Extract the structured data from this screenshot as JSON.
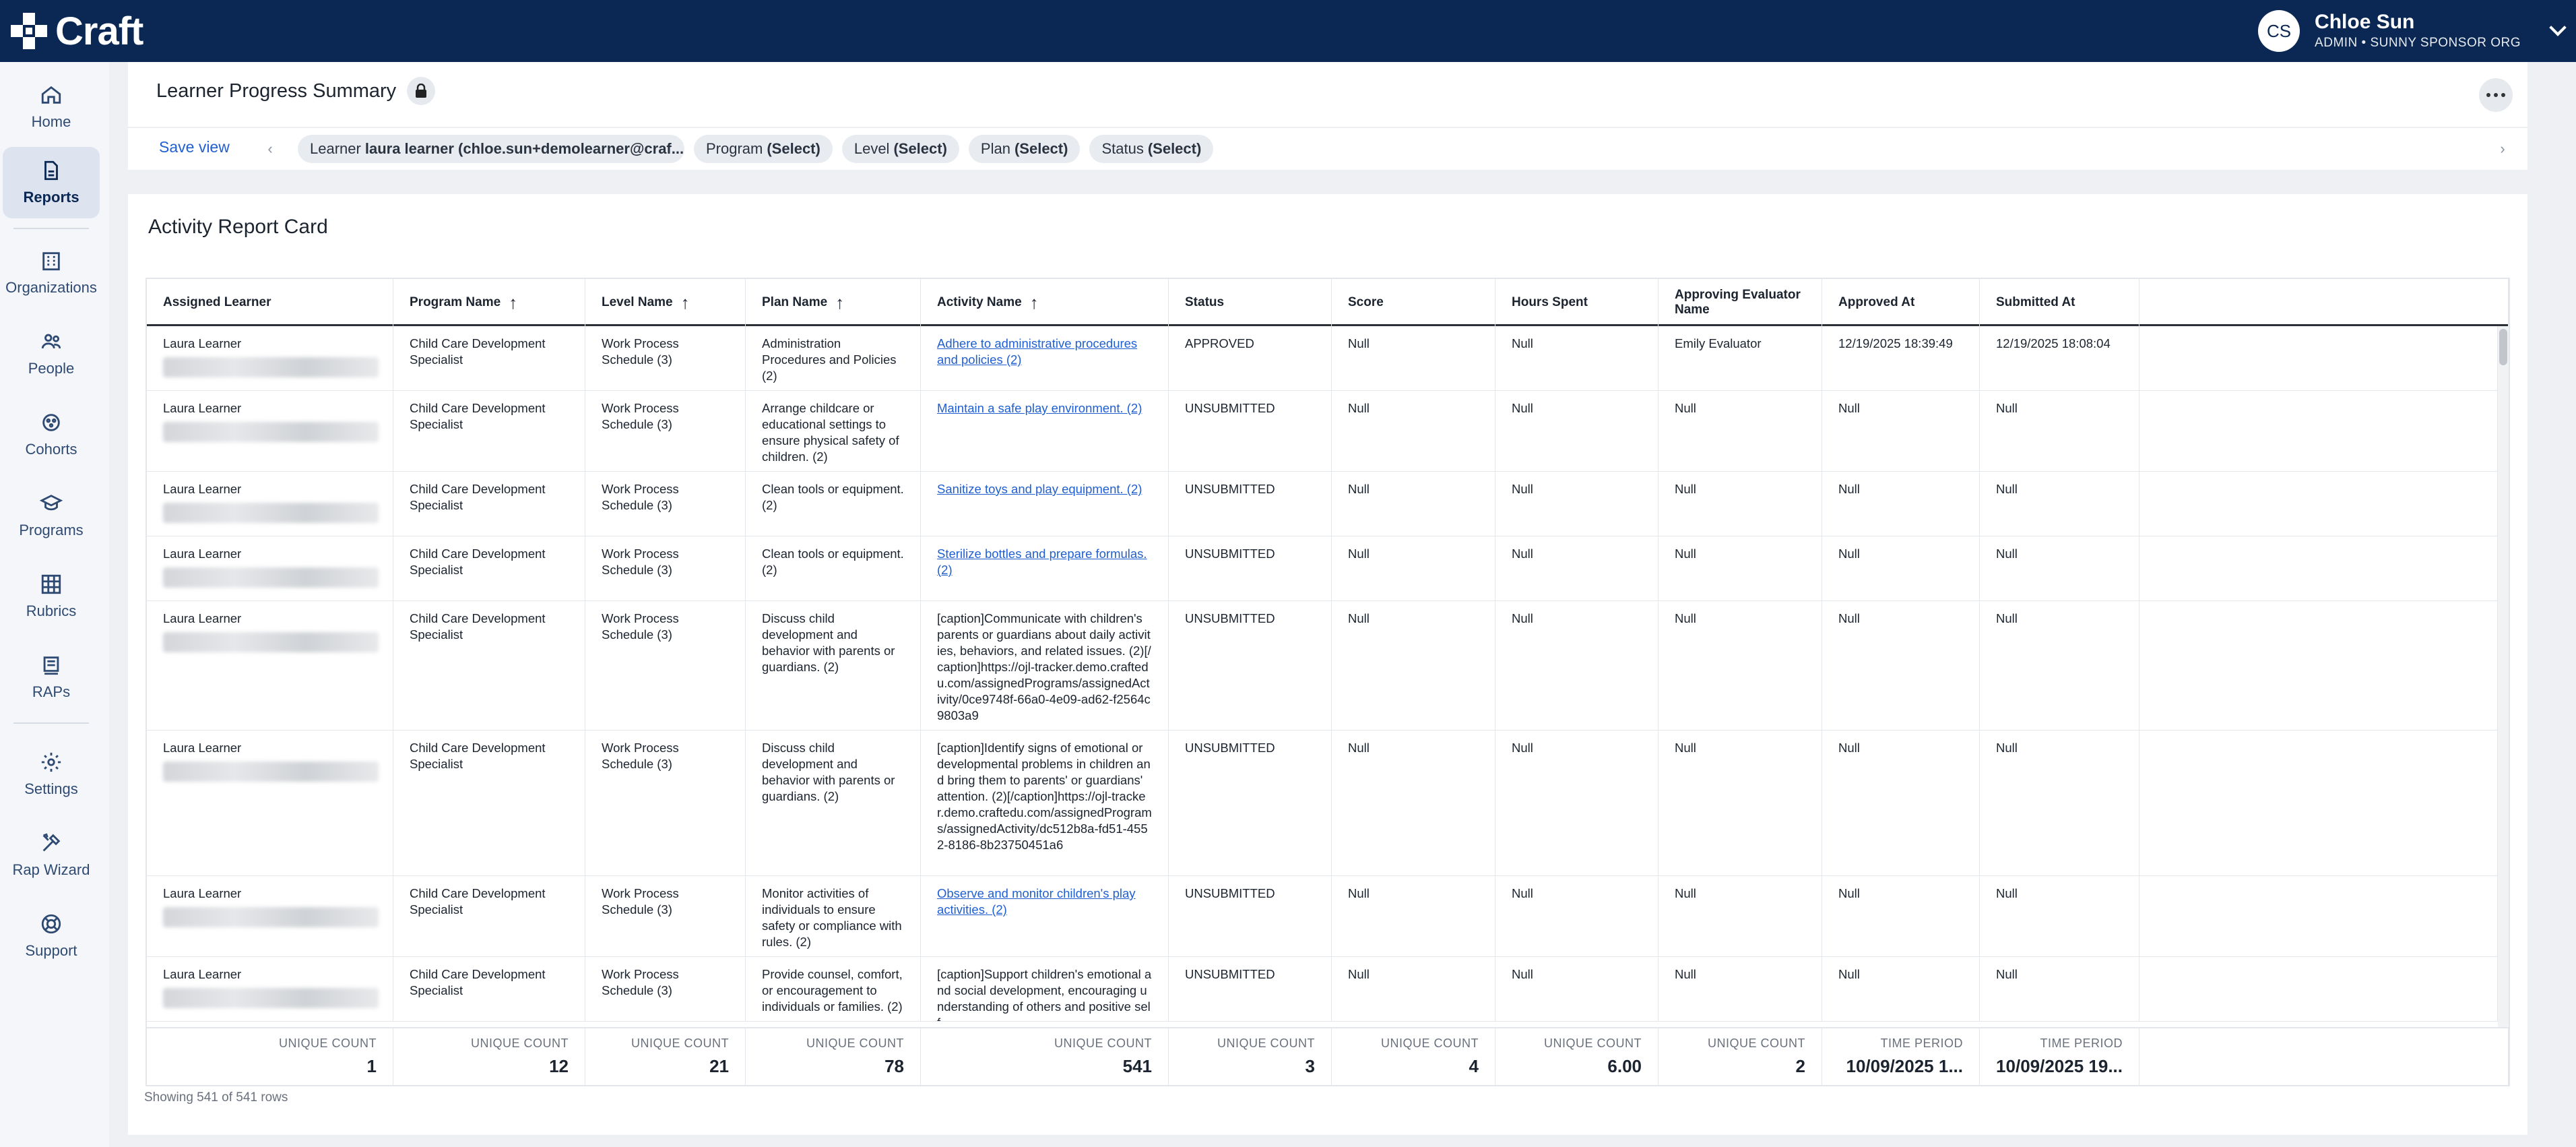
{
  "app": {
    "name": "Craft"
  },
  "user": {
    "initials": "CS",
    "name": "Chloe Sun",
    "role": "ADMIN • SUNNY SPONSOR ORG"
  },
  "sidebar": {
    "items": [
      {
        "label": "Home",
        "icon": "home-icon"
      },
      {
        "label": "Reports",
        "icon": "report-icon",
        "active": true
      },
      {
        "label": "Organizations",
        "icon": "building-icon"
      },
      {
        "label": "People",
        "icon": "people-icon"
      },
      {
        "label": "Cohorts",
        "icon": "cohorts-icon"
      },
      {
        "label": "Programs",
        "icon": "graduation-cap-icon"
      },
      {
        "label": "Rubrics",
        "icon": "grid-icon"
      },
      {
        "label": "RAPs",
        "icon": "document-icon"
      },
      {
        "label": "Settings",
        "icon": "gear-icon"
      },
      {
        "label": "Rap Wizard",
        "icon": "tools-icon"
      },
      {
        "label": "Support",
        "icon": "lifebuoy-icon"
      }
    ]
  },
  "page": {
    "title": "Learner Progress Summary",
    "save_view": "Save view"
  },
  "filters": [
    {
      "label": "Learner",
      "value": "laura learner (chloe.sun+demolearner@craf..."
    },
    {
      "label": "Program",
      "value": "(Select)"
    },
    {
      "label": "Level",
      "value": "(Select)"
    },
    {
      "label": "Plan",
      "value": "(Select)"
    },
    {
      "label": "Status",
      "value": "(Select)"
    }
  ],
  "report": {
    "title": "Activity Report Card",
    "row_count": "Showing 541 of 541 rows"
  },
  "table": {
    "columns": [
      {
        "label": "Assigned Learner",
        "sort": ""
      },
      {
        "label": "Program Name",
        "sort": "↑"
      },
      {
        "label": "Level Name",
        "sort": "↑"
      },
      {
        "label": "Plan Name",
        "sort": "↑"
      },
      {
        "label": "Activity Name",
        "sort": "↑"
      },
      {
        "label": "Status",
        "sort": ""
      },
      {
        "label": "Score",
        "sort": ""
      },
      {
        "label": "Hours Spent",
        "sort": ""
      },
      {
        "label": "Approving Evaluator Name",
        "sort": ""
      },
      {
        "label": "Approved At",
        "sort": ""
      },
      {
        "label": "Submitted At",
        "sort": ""
      },
      {
        "label": "",
        "sort": ""
      }
    ],
    "rows": [
      {
        "learner": "Laura Learner",
        "program": "Child Care Development Specialist",
        "level": "Work Process Schedule (3)",
        "plan": "Administration Procedures and Policies (2)",
        "activity": "Adhere to administrative procedures and policies (2)",
        "activity_link": true,
        "status": "APPROVED",
        "score": "Null",
        "hours": "Null",
        "evaluator": "Emily Evaluator",
        "approved": "12/19/2025 18:39:49",
        "submitted": "12/19/2025 18:08:04"
      },
      {
        "learner": "Laura Learner",
        "program": "Child Care Development Specialist",
        "level": "Work Process Schedule (3)",
        "plan": "Arrange childcare or educational settings to ensure physical safety of children. (2)",
        "activity": "Maintain a safe play environment. (2)",
        "activity_link": true,
        "status": "UNSUBMITTED",
        "score": "Null",
        "hours": "Null",
        "evaluator": "Null",
        "approved": "Null",
        "submitted": "Null"
      },
      {
        "learner": "Laura Learner",
        "program": "Child Care Development Specialist",
        "level": "Work Process Schedule (3)",
        "plan": "Clean tools or equipment. (2)",
        "activity": "Sanitize toys and play equipment. (2)",
        "activity_link": true,
        "status": "UNSUBMITTED",
        "score": "Null",
        "hours": "Null",
        "evaluator": "Null",
        "approved": "Null",
        "submitted": "Null"
      },
      {
        "learner": "Laura Learner",
        "program": "Child Care Development Specialist",
        "level": "Work Process Schedule (3)",
        "plan": "Clean tools or equipment. (2)",
        "activity": "Sterilize bottles and prepare formulas. (2)",
        "activity_link": true,
        "status": "UNSUBMITTED",
        "score": "Null",
        "hours": "Null",
        "evaluator": "Null",
        "approved": "Null",
        "submitted": "Null"
      },
      {
        "learner": "Laura Learner",
        "program": "Child Care Development Specialist",
        "level": "Work Process Schedule (3)",
        "plan": "Discuss child development and behavior with parents or guardians. (2)",
        "activity": "[caption]Communicate with children's parents or guardians about daily activities, behaviors, and related issues. (2)[/caption]https://ojl-tracker.demo.craftedu.com/assignedPrograms/assignedActivity/0ce9748f-66a0-4e09-ad62-f2564c9803a9",
        "activity_link": false,
        "status": "UNSUBMITTED",
        "score": "Null",
        "hours": "Null",
        "evaluator": "Null",
        "approved": "Null",
        "submitted": "Null"
      },
      {
        "learner": "Laura Learner",
        "program": "Child Care Development Specialist",
        "level": "Work Process Schedule (3)",
        "plan": "Discuss child development and behavior with parents or guardians. (2)",
        "activity": "[caption]Identify signs of emotional or developmental problems in children and bring them to parents' or guardians' attention. (2)[/caption]https://ojl-tracker.demo.craftedu.com/assignedPrograms/assignedActivity/dc512b8a-fd51-4552-8186-8b23750451a6",
        "activity_link": false,
        "status": "UNSUBMITTED",
        "score": "Null",
        "hours": "Null",
        "evaluator": "Null",
        "approved": "Null",
        "submitted": "Null"
      },
      {
        "learner": "Laura Learner",
        "program": "Child Care Development Specialist",
        "level": "Work Process Schedule (3)",
        "plan": "Monitor activities of individuals to ensure safety or compliance with rules. (2)",
        "activity": "Observe and monitor children's play activities. (2)",
        "activity_link": true,
        "status": "UNSUBMITTED",
        "score": "Null",
        "hours": "Null",
        "evaluator": "Null",
        "approved": "Null",
        "submitted": "Null"
      },
      {
        "learner": "Laura Learner",
        "program": "Child Care Development Specialist",
        "level": "Work Process Schedule (3)",
        "plan": "Provide counsel, comfort, or encouragement to individuals or families. (2)",
        "activity": "[caption]Support children's emotional and social development, encouraging understanding of others and positive self",
        "activity_link": false,
        "status": "UNSUBMITTED",
        "score": "Null",
        "hours": "Null",
        "evaluator": "Null",
        "approved": "Null",
        "submitted": "Null"
      }
    ],
    "footer": [
      {
        "label": "UNIQUE COUNT",
        "value": "1"
      },
      {
        "label": "UNIQUE COUNT",
        "value": "12"
      },
      {
        "label": "UNIQUE COUNT",
        "value": "21"
      },
      {
        "label": "UNIQUE COUNT",
        "value": "78"
      },
      {
        "label": "UNIQUE COUNT",
        "value": "541"
      },
      {
        "label": "UNIQUE COUNT",
        "value": "3"
      },
      {
        "label": "UNIQUE COUNT",
        "value": "4"
      },
      {
        "label": "UNIQUE COUNT",
        "value": "6.00"
      },
      {
        "label": "UNIQUE COUNT",
        "value": "2"
      },
      {
        "label": "TIME PERIOD",
        "value": "10/09/2025 1..."
      },
      {
        "label": "TIME PERIOD",
        "value": "10/09/2025 19..."
      },
      {
        "label": "",
        "value": ""
      }
    ]
  }
}
